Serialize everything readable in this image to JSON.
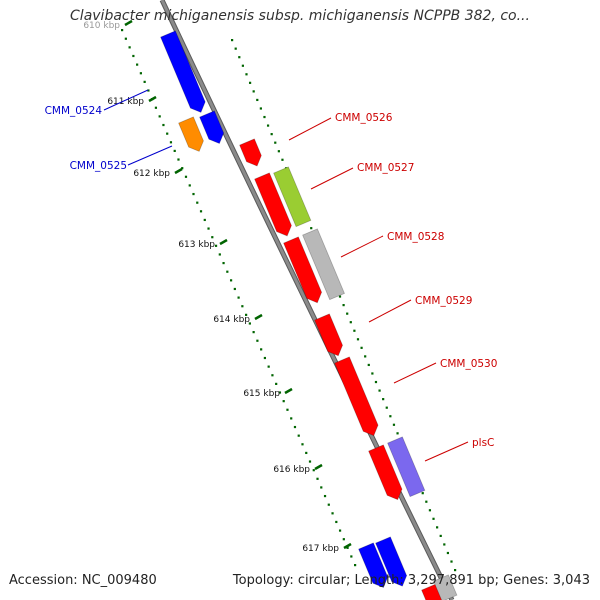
{
  "title": "Clavibacter michiganensis subsp. michiganensis NCPPB 382, co...",
  "footer": {
    "accession": "Accession: NC_009480",
    "topology": "Topology: circular; Length: 3,297,891 bp; Genes: 3,043"
  },
  "colors": {
    "backbone": "#8a8a8a",
    "tick": "#006400",
    "blue_gene": "#0000ff",
    "orange_gene": "#ff8c00",
    "red_gene": "#ff0000",
    "green_gene": "#9acd32",
    "gray_gene": "#b8b8b8",
    "purple_gene": "#7b68ee",
    "blue_label": "#0000cc",
    "red_label": "#cc0000"
  },
  "tick_labels": [
    "610 kbp",
    "611 kbp",
    "612 kbp",
    "613 kbp",
    "614 kbp",
    "615 kbp",
    "616 kbp",
    "617 kbp"
  ],
  "genes": [
    {
      "label": "CMM_0524",
      "color": "blue_gene"
    },
    {
      "label": "CMM_0525",
      "color": "orange_gene"
    },
    {
      "label": "CMM_0526",
      "color": "red_gene"
    },
    {
      "label": "CMM_0527",
      "color": "green_gene"
    },
    {
      "label": "CMM_0528",
      "color": "gray_gene"
    },
    {
      "label": "CMM_0529",
      "color": "red_gene"
    },
    {
      "label": "CMM_0530",
      "color": "red_gene"
    },
    {
      "label": "plsC",
      "color": "purple_gene"
    }
  ]
}
